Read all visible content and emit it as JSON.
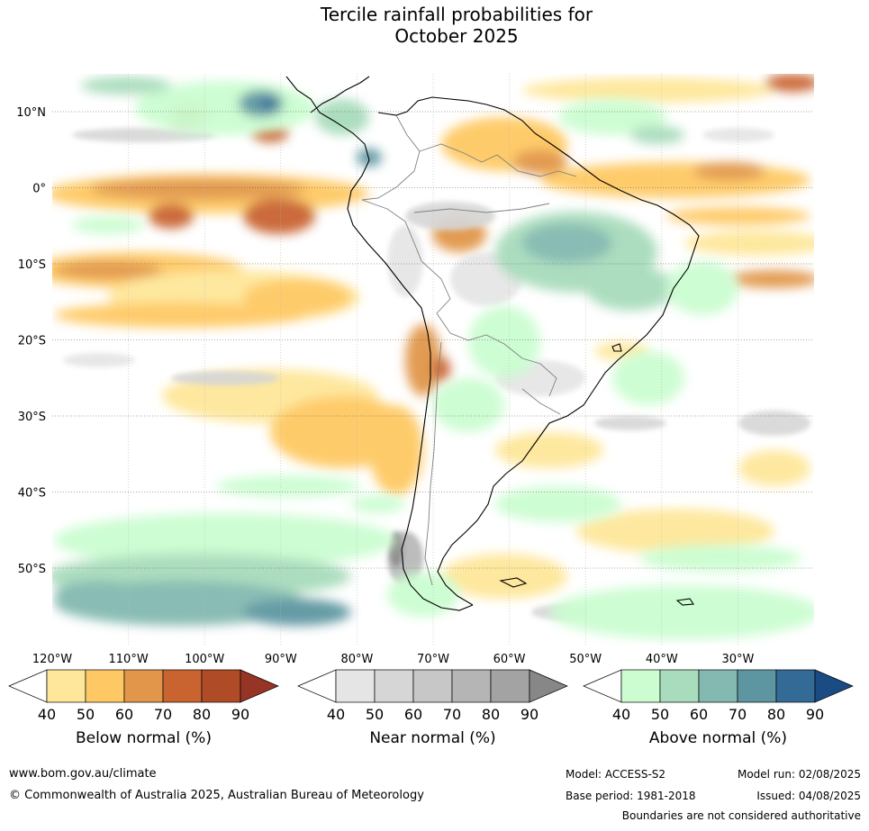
{
  "title_line1": "Tercile rainfall probabilities for",
  "title_line2": "October 2025",
  "map": {
    "lat_labels": [
      "10°N",
      "0°",
      "10°S",
      "20°S",
      "30°S",
      "40°S",
      "50°S"
    ],
    "lon_labels": [
      "120°W",
      "110°W",
      "100°W",
      "90°W",
      "80°W",
      "70°W",
      "60°W",
      "50°W",
      "40°W",
      "30°W"
    ]
  },
  "colorbars": [
    {
      "title": "Below normal (%)",
      "ticks": [
        "40",
        "50",
        "60",
        "70",
        "80",
        "90"
      ],
      "colors": [
        "#ffffff",
        "#fee79a",
        "#fec964",
        "#e1964a",
        "#c96430",
        "#b04b28",
        "#963426"
      ]
    },
    {
      "title": "Near normal (%)",
      "ticks": [
        "40",
        "50",
        "60",
        "70",
        "80",
        "90"
      ],
      "colors": [
        "#ffffff",
        "#e5e5e5",
        "#d6d6d6",
        "#c7c7c7",
        "#b5b5b5",
        "#a3a3a3",
        "#878787"
      ]
    },
    {
      "title": "Above normal (%)",
      "ticks": [
        "40",
        "50",
        "60",
        "70",
        "80",
        "90"
      ],
      "colors": [
        "#ffffff",
        "#cbfdd0",
        "#a8dcbc",
        "#83b9b0",
        "#5d96a0",
        "#346a96",
        "#1a4b82"
      ]
    }
  ],
  "footer": {
    "website": "www.bom.gov.au/climate",
    "copyright": "© Commonwealth of Australia 2025, Australian Bureau of Meteorology",
    "model": "Model: ACCESS-S2",
    "base_period": "Base period: 1981-2018",
    "model_run": "Model run: 02/08/2025",
    "issued": "Issued: 04/08/2025",
    "disclaimer": "Boundaries are not considered authoritative"
  }
}
